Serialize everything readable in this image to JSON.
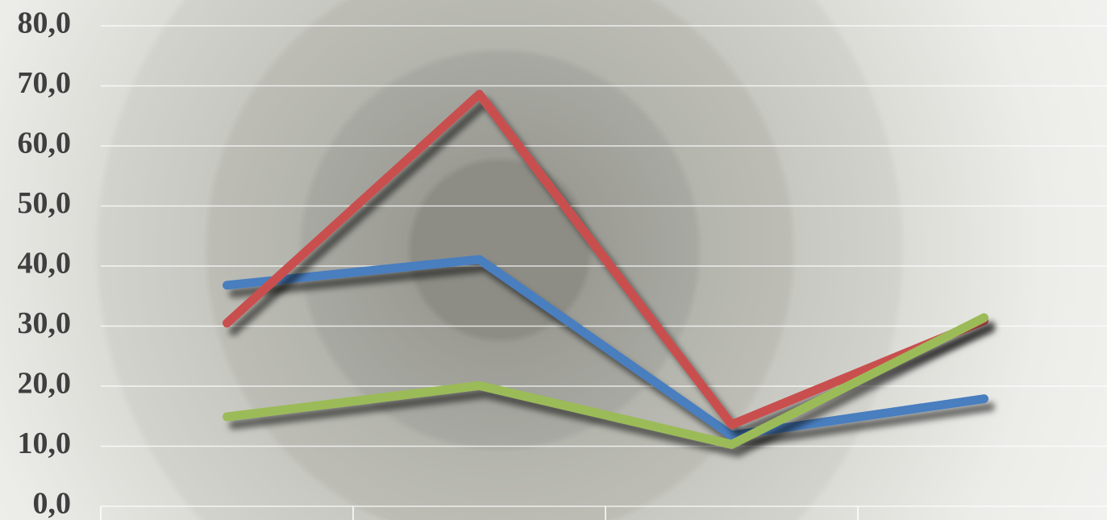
{
  "chart_data": {
    "type": "line",
    "categories": [
      null,
      null,
      null,
      null
    ],
    "series": [
      {
        "color": "#4a7ebf",
        "values": [
          36.8,
          41.1,
          11.8,
          17.9
        ]
      },
      {
        "color": "#c9504f",
        "values": [
          30.5,
          68.6,
          13.6,
          30.9
        ]
      },
      {
        "color": "#9bbb59",
        "values": [
          14.9,
          20.1,
          10.3,
          31.4
        ]
      }
    ],
    "ylim": [
      0,
      80
    ],
    "yticks": [
      {
        "value": 0,
        "label": "0,0"
      },
      {
        "value": 10,
        "label": "10,0"
      },
      {
        "value": 20,
        "label": "20,0"
      },
      {
        "value": 30,
        "label": "30,0"
      },
      {
        "value": 40,
        "label": "40,0"
      },
      {
        "value": 50,
        "label": "50,0"
      },
      {
        "value": 60,
        "label": "60,0"
      },
      {
        "value": 70,
        "label": "70,0"
      },
      {
        "value": 80,
        "label": "80,0"
      }
    ],
    "grid": true
  }
}
